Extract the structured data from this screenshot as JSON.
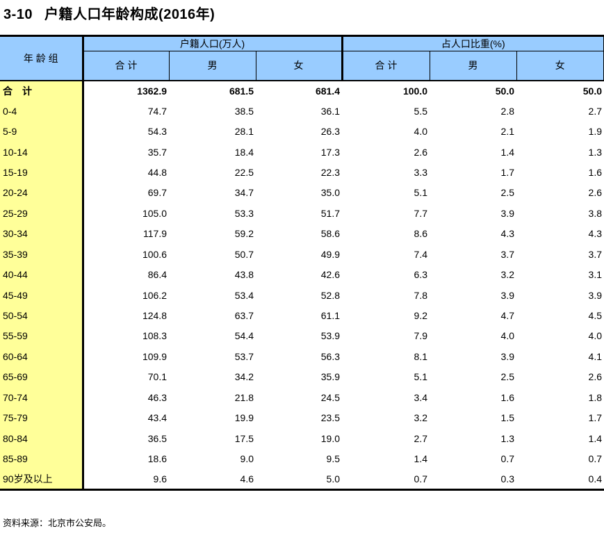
{
  "title": {
    "number": "3-10",
    "text": "户籍人口年龄构成(2016年)"
  },
  "table": {
    "corner_header": "年 龄 组",
    "groups": [
      {
        "label": "户籍人口(万人)",
        "columns": [
          "合 计",
          "男",
          "女"
        ]
      },
      {
        "label": "占人口比重(%)",
        "columns": [
          "合 计",
          "男",
          "女"
        ]
      }
    ],
    "rows": [
      {
        "label": "合　计",
        "bold": true,
        "values": [
          "1362.9",
          "681.5",
          "681.4",
          "100.0",
          "50.0",
          "50.0"
        ]
      },
      {
        "label": "0-4",
        "bold": false,
        "values": [
          "74.7",
          "38.5",
          "36.1",
          "5.5",
          "2.8",
          "2.7"
        ]
      },
      {
        "label": "5-9",
        "bold": false,
        "values": [
          "54.3",
          "28.1",
          "26.3",
          "4.0",
          "2.1",
          "1.9"
        ]
      },
      {
        "label": "10-14",
        "bold": false,
        "values": [
          "35.7",
          "18.4",
          "17.3",
          "2.6",
          "1.4",
          "1.3"
        ]
      },
      {
        "label": "15-19",
        "bold": false,
        "values": [
          "44.8",
          "22.5",
          "22.3",
          "3.3",
          "1.7",
          "1.6"
        ]
      },
      {
        "label": "20-24",
        "bold": false,
        "values": [
          "69.7",
          "34.7",
          "35.0",
          "5.1",
          "2.5",
          "2.6"
        ]
      },
      {
        "label": "25-29",
        "bold": false,
        "values": [
          "105.0",
          "53.3",
          "51.7",
          "7.7",
          "3.9",
          "3.8"
        ]
      },
      {
        "label": "30-34",
        "bold": false,
        "values": [
          "117.9",
          "59.2",
          "58.6",
          "8.6",
          "4.3",
          "4.3"
        ]
      },
      {
        "label": "35-39",
        "bold": false,
        "values": [
          "100.6",
          "50.7",
          "49.9",
          "7.4",
          "3.7",
          "3.7"
        ]
      },
      {
        "label": "40-44",
        "bold": false,
        "values": [
          "86.4",
          "43.8",
          "42.6",
          "6.3",
          "3.2",
          "3.1"
        ]
      },
      {
        "label": "45-49",
        "bold": false,
        "values": [
          "106.2",
          "53.4",
          "52.8",
          "7.8",
          "3.9",
          "3.9"
        ]
      },
      {
        "label": "50-54",
        "bold": false,
        "values": [
          "124.8",
          "63.7",
          "61.1",
          "9.2",
          "4.7",
          "4.5"
        ]
      },
      {
        "label": "55-59",
        "bold": false,
        "values": [
          "108.3",
          "54.4",
          "53.9",
          "7.9",
          "4.0",
          "4.0"
        ]
      },
      {
        "label": "60-64",
        "bold": false,
        "values": [
          "109.9",
          "53.7",
          "56.3",
          "8.1",
          "3.9",
          "4.1"
        ]
      },
      {
        "label": "65-69",
        "bold": false,
        "values": [
          "70.1",
          "34.2",
          "35.9",
          "5.1",
          "2.5",
          "2.6"
        ]
      },
      {
        "label": "70-74",
        "bold": false,
        "values": [
          "46.3",
          "21.8",
          "24.5",
          "3.4",
          "1.6",
          "1.8"
        ]
      },
      {
        "label": "75-79",
        "bold": false,
        "values": [
          "43.4",
          "19.9",
          "23.5",
          "3.2",
          "1.5",
          "1.7"
        ]
      },
      {
        "label": "80-84",
        "bold": false,
        "values": [
          "36.5",
          "17.5",
          "19.0",
          "2.7",
          "1.3",
          "1.4"
        ]
      },
      {
        "label": "85-89",
        "bold": false,
        "values": [
          "18.6",
          "9.0",
          "9.5",
          "1.4",
          "0.7",
          "0.7"
        ]
      },
      {
        "label": "90岁及以上",
        "bold": false,
        "values": [
          "9.6",
          "4.6",
          "5.0",
          "0.7",
          "0.3",
          "0.4"
        ]
      }
    ]
  },
  "footer": {
    "source": "资料来源：北京市公安局。"
  },
  "colors": {
    "header_bg": "#99CCFF",
    "label_bg": "#FFFF99",
    "border": "#000000",
    "text": "#000000"
  }
}
